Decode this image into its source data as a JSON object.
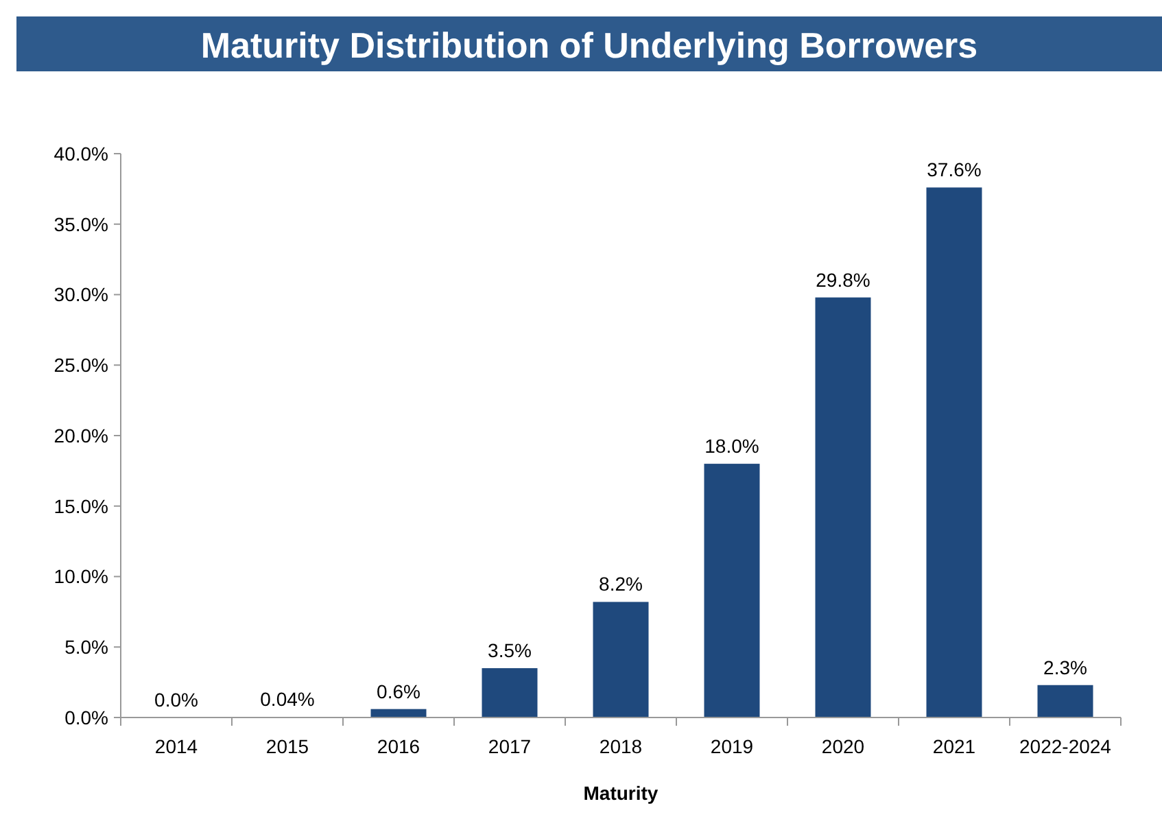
{
  "chart_data": {
    "type": "bar",
    "title": "Maturity Distribution of Underlying Borrowers",
    "xlabel": "Maturity",
    "categories": [
      "2014",
      "2015",
      "2016",
      "2017",
      "2018",
      "2019",
      "2020",
      "2021",
      "2022-2024"
    ],
    "values": [
      0.0,
      0.04,
      0.6,
      3.5,
      8.2,
      18.0,
      29.8,
      37.6,
      2.3
    ],
    "value_labels": [
      "0.0%",
      "0.04%",
      "0.6%",
      "3.5%",
      "8.2%",
      "18.0%",
      "29.8%",
      "37.6%",
      "2.3%"
    ],
    "color": "#1f497d",
    "ylim": [
      0,
      40
    ],
    "yticks": [
      {
        "value": 0,
        "label": "0.0%"
      },
      {
        "value": 5,
        "label": "5.0%"
      },
      {
        "value": 10,
        "label": "10.0%"
      },
      {
        "value": 15,
        "label": "15.0%"
      },
      {
        "value": 20,
        "label": "20.0%"
      },
      {
        "value": 25,
        "label": "25.0%"
      },
      {
        "value": 30,
        "label": "30.0%"
      },
      {
        "value": 35,
        "label": "35.0%"
      },
      {
        "value": 40,
        "label": "40.0%"
      }
    ],
    "grid": false
  }
}
